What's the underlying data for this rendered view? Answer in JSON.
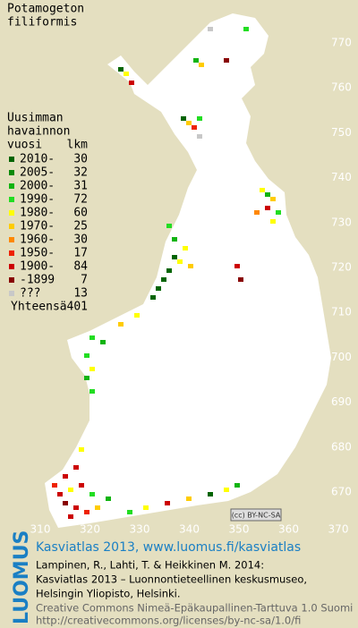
{
  "title": [
    "Potamogeton",
    "filiformis"
  ],
  "legend": {
    "heading": [
      "Uusimman",
      "havainnon",
      "vuosi"
    ],
    "count_heading": "lkm",
    "items": [
      {
        "label": "2010-",
        "count": 30,
        "color": "#006400"
      },
      {
        "label": "2005-",
        "count": 32,
        "color": "#0a8a0a"
      },
      {
        "label": "2000-",
        "count": 31,
        "color": "#11b411"
      },
      {
        "label": "1990-",
        "count": 72,
        "color": "#22dd22"
      },
      {
        "label": "1980-",
        "count": 60,
        "color": "#ffff00"
      },
      {
        "label": "1970-",
        "count": 25,
        "color": "#ffcc00"
      },
      {
        "label": "1960-",
        "count": 30,
        "color": "#ff8800"
      },
      {
        "label": "1950-",
        "count": 17,
        "color": "#ee2200"
      },
      {
        "label": "1900-",
        "count": 84,
        "color": "#cc0000"
      },
      {
        "label": "-1899",
        "count": 7,
        "color": "#880000"
      },
      {
        "label": "???",
        "count": 13,
        "color": "#c8c8c8"
      }
    ],
    "total_label": "Yhteensä",
    "total": 401
  },
  "axis": {
    "x_ticks": [
      310,
      320,
      330,
      340,
      350,
      360,
      370
    ],
    "y_ticks": [
      770,
      760,
      750,
      740,
      730,
      720,
      710,
      700,
      690,
      680,
      670
    ]
  },
  "badge": "(cc) BY-NC-SA",
  "footer": {
    "logo": "LUOMUS",
    "lines": [
      "Kasviatlas 2013, www.luomus.fi/kasviatlas",
      "Lampinen, R., Lahti, T. & Heikkinen M. 2014:",
      "Kasviatlas 2013 – Luonnontieteellinen keskusmuseo,",
      "Helsingin Yliopisto, Helsinki.",
      "Creative Commons Nimeä-Epäkaupallinen-Tarttuva 1.0 Suomi",
      "http://creativecommons.org/licenses/by-nc-sa/1.0/fi"
    ]
  }
}
